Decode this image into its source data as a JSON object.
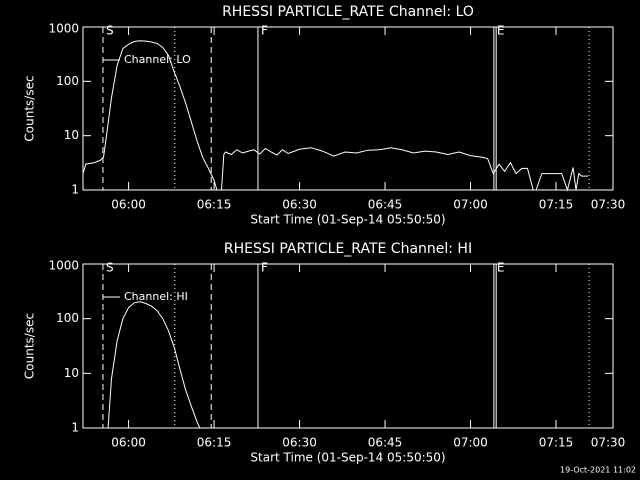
{
  "chart_data": [
    {
      "type": "line",
      "title": "RHESSI PARTICLE_RATE Channel: LO",
      "xlabel": "Start Time (01-Sep-14 05:50:50)",
      "ylabel": "Counts/sec",
      "yscale": "log",
      "xlim": [
        352,
        445
      ],
      "ylim": [
        1,
        1000
      ],
      "yticks": [
        1,
        10,
        100,
        1000
      ],
      "xticks": [
        {
          "value": 360,
          "label": "06:00"
        },
        {
          "value": 375,
          "label": "06:15"
        },
        {
          "value": 390,
          "label": "06:30"
        },
        {
          "value": 405,
          "label": "06:45"
        },
        {
          "value": 420,
          "label": "07:00"
        },
        {
          "value": 435,
          "label": "07:15"
        },
        {
          "value": 450,
          "label": "07:30"
        }
      ],
      "markers": [
        {
          "x": 355.5,
          "style": "dashed",
          "label": "S"
        },
        {
          "x": 368.1,
          "style": "dotted"
        },
        {
          "x": 374.5,
          "style": "dashed"
        },
        {
          "x": 382.7,
          "style": "solid",
          "label": "F"
        },
        {
          "x": 424.1,
          "style": "solid",
          "label": "E"
        },
        {
          "x": 424.5,
          "style": "solid"
        },
        {
          "x": 440.8,
          "style": "dotted"
        }
      ],
      "x": [
        352,
        352.5,
        354,
        355,
        355.6,
        356,
        357,
        358,
        359,
        360,
        361,
        362,
        363,
        364,
        365,
        366,
        367,
        368,
        369,
        370,
        371,
        372,
        373,
        374,
        375,
        375.5,
        376.3,
        376.7,
        377,
        378,
        379,
        380,
        381,
        382,
        383,
        384,
        385,
        386,
        387,
        388,
        390,
        392,
        394,
        396,
        398,
        400,
        402,
        404,
        406,
        408,
        410,
        412,
        414,
        416,
        418,
        420,
        422,
        423,
        424,
        425,
        426,
        427,
        428,
        429,
        430,
        431,
        431.5,
        432.5,
        433,
        435,
        436,
        437,
        438,
        438.5,
        439,
        439.5,
        440.6
      ],
      "series": [
        {
          "name": "Channel: LO",
          "color": "#ffffff",
          "values": [
            2.0,
            3.0,
            3.2,
            3.5,
            4,
            8,
            50,
            200,
            400,
            480,
            540,
            560,
            550,
            530,
            500,
            420,
            300,
            150,
            80,
            40,
            18,
            8,
            4,
            2.5,
            1.5,
            1.0,
            1.0,
            4.5,
            5.0,
            4.5,
            5.5,
            4.8,
            5.2,
            5.5,
            4.6,
            5.8,
            5.0,
            4.4,
            5.5,
            4.7,
            5.6,
            6.0,
            5.2,
            4.2,
            5.0,
            4.8,
            5.4,
            5.5,
            6.0,
            5.5,
            4.8,
            5.2,
            5.0,
            4.5,
            5.0,
            4.3,
            4.0,
            3.8,
            2.0,
            3.0,
            2.2,
            3.2,
            2.0,
            2.5,
            2.5,
            1.0,
            1.0,
            2.0,
            2.0,
            2.0,
            2.0,
            1.0,
            2.6,
            1.0,
            2.0,
            1.8,
            1.8
          ]
        }
      ]
    },
    {
      "type": "line",
      "title": "RHESSI PARTICLE_RATE Channel: HI",
      "xlabel": "Start Time (01-Sep-14 05:50:50)",
      "ylabel": "Counts/sec",
      "yscale": "log",
      "xlim": [
        352,
        445
      ],
      "ylim": [
        1,
        1000
      ],
      "yticks": [
        1,
        10,
        100,
        1000
      ],
      "xticks": [
        {
          "value": 360,
          "label": "06:00"
        },
        {
          "value": 375,
          "label": "06:15"
        },
        {
          "value": 390,
          "label": "06:30"
        },
        {
          "value": 405,
          "label": "06:45"
        },
        {
          "value": 420,
          "label": "07:00"
        },
        {
          "value": 435,
          "label": "07:15"
        },
        {
          "value": 450,
          "label": "07:30"
        }
      ],
      "markers": [
        {
          "x": 355.5,
          "style": "dashed",
          "label": "S"
        },
        {
          "x": 368.1,
          "style": "dotted"
        },
        {
          "x": 374.5,
          "style": "dashed"
        },
        {
          "x": 382.7,
          "style": "solid",
          "label": "F"
        },
        {
          "x": 424.1,
          "style": "solid",
          "label": "E"
        },
        {
          "x": 424.5,
          "style": "solid"
        },
        {
          "x": 440.8,
          "style": "dotted"
        }
      ],
      "x": [
        356.4,
        357,
        358,
        359,
        360,
        361,
        362,
        363,
        364,
        365,
        366,
        367,
        368,
        369,
        370,
        371,
        372,
        372.5
      ],
      "series": [
        {
          "name": "Channel: HI",
          "color": "#ffffff",
          "values": [
            1,
            8,
            40,
            100,
            160,
            195,
            205,
            190,
            170,
            140,
            100,
            60,
            30,
            12,
            5,
            2.5,
            1.3,
            1.0
          ]
        }
      ]
    }
  ],
  "footer": "19-Oct-2021 11:02"
}
